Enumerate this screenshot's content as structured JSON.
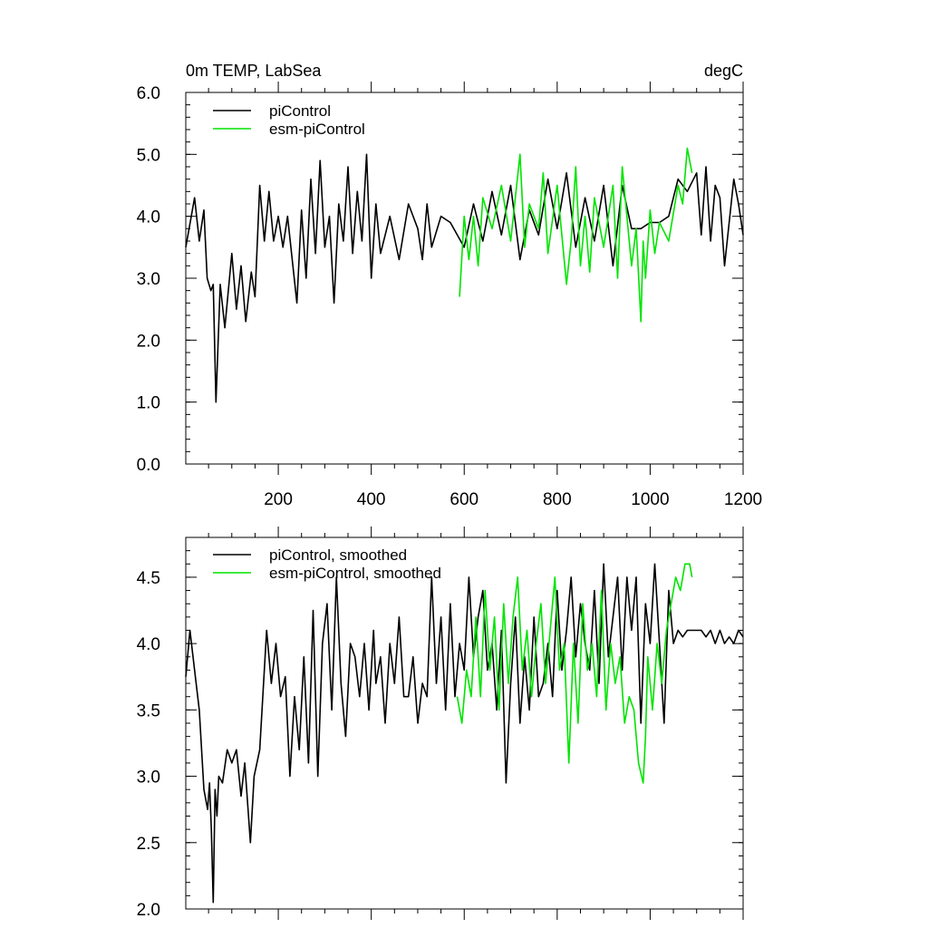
{
  "chart_data": [
    {
      "type": "line",
      "title_left": "0m TEMP, LabSea",
      "title_right": "degC",
      "xlim": [
        1,
        1200
      ],
      "ylim": [
        0,
        6
      ],
      "xticks": [
        200,
        400,
        600,
        800,
        1000,
        1200
      ],
      "xtick_labels": [
        "200",
        "400",
        "600",
        "800",
        "1000",
        "1200"
      ],
      "yticks": [
        0,
        1,
        2,
        3,
        4,
        5,
        6
      ],
      "ytick_labels": [
        "0.0",
        "1.0",
        "2.0",
        "3.0",
        "4.0",
        "5.0",
        "6.0"
      ],
      "legend_position": "top-left",
      "series": [
        {
          "name": "piControl",
          "color": "#000000",
          "x": [
            1,
            20,
            30,
            40,
            47,
            55,
            60,
            66,
            75,
            85,
            100,
            110,
            120,
            130,
            142,
            150,
            160,
            170,
            180,
            190,
            200,
            210,
            220,
            240,
            250,
            260,
            270,
            280,
            290,
            300,
            310,
            320,
            330,
            340,
            350,
            360,
            370,
            380,
            390,
            400,
            410,
            420,
            440,
            460,
            480,
            500,
            510,
            520,
            530,
            550,
            570,
            600,
            620,
            640,
            660,
            680,
            700,
            720,
            740,
            760,
            780,
            800,
            820,
            840,
            860,
            880,
            900,
            920,
            940,
            960,
            980,
            1000,
            1020,
            1040,
            1060,
            1080,
            1100,
            1110,
            1120,
            1130,
            1140,
            1150,
            1160,
            1180,
            1190,
            1200
          ],
          "values": [
            3.5,
            4.3,
            3.6,
            4.1,
            3.0,
            2.8,
            2.9,
            1.0,
            2.9,
            2.2,
            3.4,
            2.5,
            3.2,
            2.3,
            3.1,
            2.7,
            4.5,
            3.6,
            4.4,
            3.6,
            4.0,
            3.5,
            4.0,
            2.6,
            4.1,
            3.0,
            4.6,
            3.4,
            4.9,
            3.5,
            4.0,
            2.6,
            4.2,
            3.6,
            4.8,
            3.4,
            4.4,
            3.6,
            5.0,
            3.0,
            4.2,
            3.4,
            4.0,
            3.3,
            4.2,
            3.8,
            3.3,
            4.2,
            3.5,
            4.0,
            3.9,
            3.5,
            4.2,
            3.6,
            4.4,
            3.7,
            4.5,
            3.3,
            4.1,
            3.7,
            4.6,
            3.8,
            4.7,
            3.5,
            4.3,
            3.6,
            4.5,
            3.2,
            4.5,
            3.8,
            3.8,
            3.9,
            3.9,
            4.0,
            4.6,
            4.4,
            4.7,
            3.7,
            4.8,
            3.6,
            4.5,
            4.3,
            3.2,
            4.6,
            4.2,
            3.7
          ]
        },
        {
          "name": "esm-piControl",
          "color": "#00e400",
          "x": [
            590,
            600,
            610,
            620,
            630,
            640,
            660,
            680,
            700,
            720,
            730,
            740,
            760,
            770,
            780,
            800,
            820,
            830,
            840,
            850,
            860,
            870,
            880,
            900,
            920,
            930,
            940,
            960,
            970,
            980,
            985,
            990,
            1000,
            1010,
            1020,
            1040,
            1060,
            1070,
            1080,
            1090
          ],
          "values": [
            2.7,
            4.0,
            3.3,
            4.0,
            3.2,
            4.3,
            3.8,
            4.5,
            3.6,
            5.0,
            3.5,
            4.2,
            3.8,
            4.7,
            3.4,
            4.5,
            2.9,
            3.6,
            4.8,
            3.2,
            4.0,
            3.1,
            4.3,
            3.5,
            4.5,
            3.0,
            4.8,
            3.2,
            3.8,
            2.3,
            3.6,
            3.0,
            4.1,
            3.4,
            3.9,
            3.6,
            4.5,
            4.2,
            5.1,
            4.7
          ]
        }
      ]
    },
    {
      "type": "line",
      "xlim": [
        1,
        1200
      ],
      "ylim": [
        2.0,
        4.8
      ],
      "yticks": [
        2.0,
        2.5,
        3.0,
        3.5,
        4.0,
        4.5
      ],
      "ytick_labels": [
        "2.0",
        "2.5",
        "3.0",
        "3.5",
        "4.0",
        "4.5"
      ],
      "legend_position": "top-left",
      "series": [
        {
          "name": "piControl, smoothed",
          "color": "#000000",
          "x": [
            1,
            10,
            20,
            30,
            40,
            48,
            52,
            56,
            60,
            64,
            68,
            72,
            80,
            90,
            100,
            110,
            120,
            128,
            140,
            148,
            160,
            175,
            185,
            195,
            205,
            215,
            225,
            235,
            245,
            255,
            265,
            275,
            285,
            295,
            305,
            315,
            325,
            335,
            345,
            355,
            365,
            375,
            385,
            395,
            405,
            410,
            420,
            430,
            440,
            450,
            460,
            470,
            480,
            490,
            500,
            510,
            520,
            530,
            540,
            550,
            560,
            570,
            580,
            590,
            600,
            610,
            620,
            630,
            640,
            650,
            660,
            670,
            680,
            690,
            700,
            710,
            720,
            730,
            740,
            750,
            760,
            770,
            780,
            790,
            800,
            810,
            820,
            830,
            840,
            850,
            860,
            870,
            880,
            890,
            900,
            910,
            920,
            930,
            940,
            950,
            960,
            970,
            980,
            990,
            1000,
            1010,
            1020,
            1030,
            1040,
            1050,
            1060,
            1070,
            1080,
            1090,
            1100,
            1110,
            1120,
            1130,
            1140,
            1150,
            1160,
            1170,
            1180,
            1190,
            1200
          ],
          "values": [
            3.75,
            4.1,
            3.8,
            3.5,
            2.9,
            2.75,
            2.95,
            2.6,
            2.05,
            2.9,
            2.7,
            3.0,
            2.95,
            3.2,
            3.1,
            3.2,
            2.85,
            3.1,
            2.5,
            3.0,
            3.2,
            4.1,
            3.7,
            4.0,
            3.6,
            3.75,
            3.0,
            3.6,
            3.2,
            3.9,
            3.1,
            4.25,
            3.0,
            4.0,
            4.3,
            3.5,
            4.5,
            3.7,
            3.3,
            4.0,
            3.9,
            3.6,
            4.0,
            3.5,
            4.1,
            3.7,
            3.9,
            3.4,
            4.0,
            3.7,
            4.2,
            3.6,
            3.6,
            3.9,
            3.4,
            3.7,
            3.6,
            4.5,
            3.7,
            4.2,
            3.5,
            4.3,
            3.6,
            4.0,
            3.8,
            4.5,
            3.9,
            4.2,
            4.4,
            3.8,
            4.0,
            3.5,
            4.1,
            2.95,
            3.7,
            4.2,
            3.4,
            3.9,
            3.5,
            4.2,
            3.6,
            3.7,
            4.0,
            3.6,
            4.4,
            3.8,
            4.1,
            4.5,
            3.9,
            4.3,
            4.0,
            3.8,
            4.4,
            3.7,
            4.6,
            3.9,
            4.2,
            4.5,
            3.8,
            4.5,
            4.1,
            4.5,
            3.4,
            4.3,
            4.0,
            4.6,
            4.0,
            3.4,
            4.4,
            4.0,
            4.1,
            4.05,
            4.1,
            4.1,
            4.1,
            4.1,
            4.05,
            4.1,
            4.0,
            4.1,
            4.0,
            4.05,
            4.0,
            4.1,
            4.05
          ]
        },
        {
          "name": "esm-piControl, smoothed",
          "color": "#00e400",
          "x": [
            585,
            595,
            605,
            615,
            625,
            635,
            645,
            655,
            665,
            675,
            685,
            695,
            705,
            715,
            725,
            735,
            745,
            755,
            765,
            775,
            785,
            795,
            805,
            815,
            825,
            835,
            845,
            855,
            865,
            875,
            885,
            895,
            905,
            915,
            925,
            935,
            945,
            955,
            965,
            975,
            985,
            990,
            995,
            1005,
            1015,
            1025,
            1035,
            1045,
            1055,
            1065,
            1075,
            1085,
            1090
          ],
          "values": [
            3.6,
            3.4,
            3.8,
            3.6,
            4.2,
            3.6,
            4.4,
            3.8,
            4.2,
            3.5,
            4.3,
            3.7,
            4.2,
            4.5,
            3.8,
            4.1,
            3.6,
            4.0,
            4.3,
            3.7,
            4.1,
            4.5,
            3.8,
            4.0,
            3.1,
            4.0,
            3.4,
            4.3,
            3.8,
            4.0,
            3.6,
            4.4,
            3.5,
            4.0,
            3.7,
            3.9,
            3.4,
            3.6,
            3.5,
            3.1,
            2.95,
            3.3,
            3.9,
            3.5,
            4.0,
            3.7,
            4.1,
            4.3,
            4.5,
            4.4,
            4.6,
            4.6,
            4.5
          ]
        }
      ]
    }
  ]
}
